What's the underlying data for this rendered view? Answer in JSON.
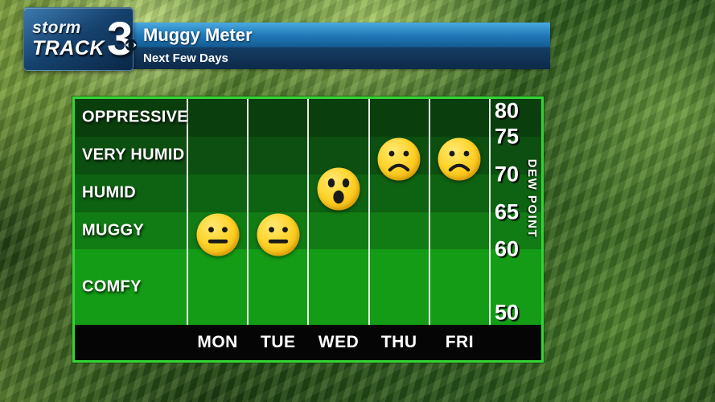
{
  "logo": {
    "storm": "storm",
    "track": "TRACK",
    "number": "3"
  },
  "header": {
    "title": "Muggy Meter",
    "subtitle": "Next Few Days"
  },
  "chart_data": {
    "type": "scatter",
    "title": "Muggy Meter",
    "subtitle": "Next Few Days",
    "categories": [
      "MON",
      "TUE",
      "WED",
      "THU",
      "FRI"
    ],
    "values": [
      62,
      62,
      68,
      72,
      72
    ],
    "moods": [
      "neutral",
      "neutral",
      "surprised",
      "frown",
      "frown"
    ],
    "ylabel": "DEW POINT",
    "ylim": [
      50,
      80
    ],
    "y_ticks": [
      80,
      75,
      70,
      65,
      60,
      50
    ],
    "bands": [
      {
        "label": "OPPRESSIVE",
        "from": 75,
        "to": 80,
        "color": "#0a3f0d"
      },
      {
        "label": "VERY HUMID",
        "from": 70,
        "to": 75,
        "color": "#0c4f10"
      },
      {
        "label": "HUMID",
        "from": 65,
        "to": 70,
        "color": "#0e6312"
      },
      {
        "label": "MUGGY",
        "from": 60,
        "to": 65,
        "color": "#117b14"
      },
      {
        "label": "COMFY",
        "from": 50,
        "to": 60,
        "color": "#149c16"
      }
    ],
    "grid": "vertical-day-dividers",
    "legend": "none"
  },
  "colors": {
    "graphic_border": "#35d435",
    "face_yellow": "#ffd42a",
    "title_bar_blue": "#1f76b4",
    "subtitle_bar_navy": "#0d2a49",
    "axis_bar_black": "#050505"
  }
}
